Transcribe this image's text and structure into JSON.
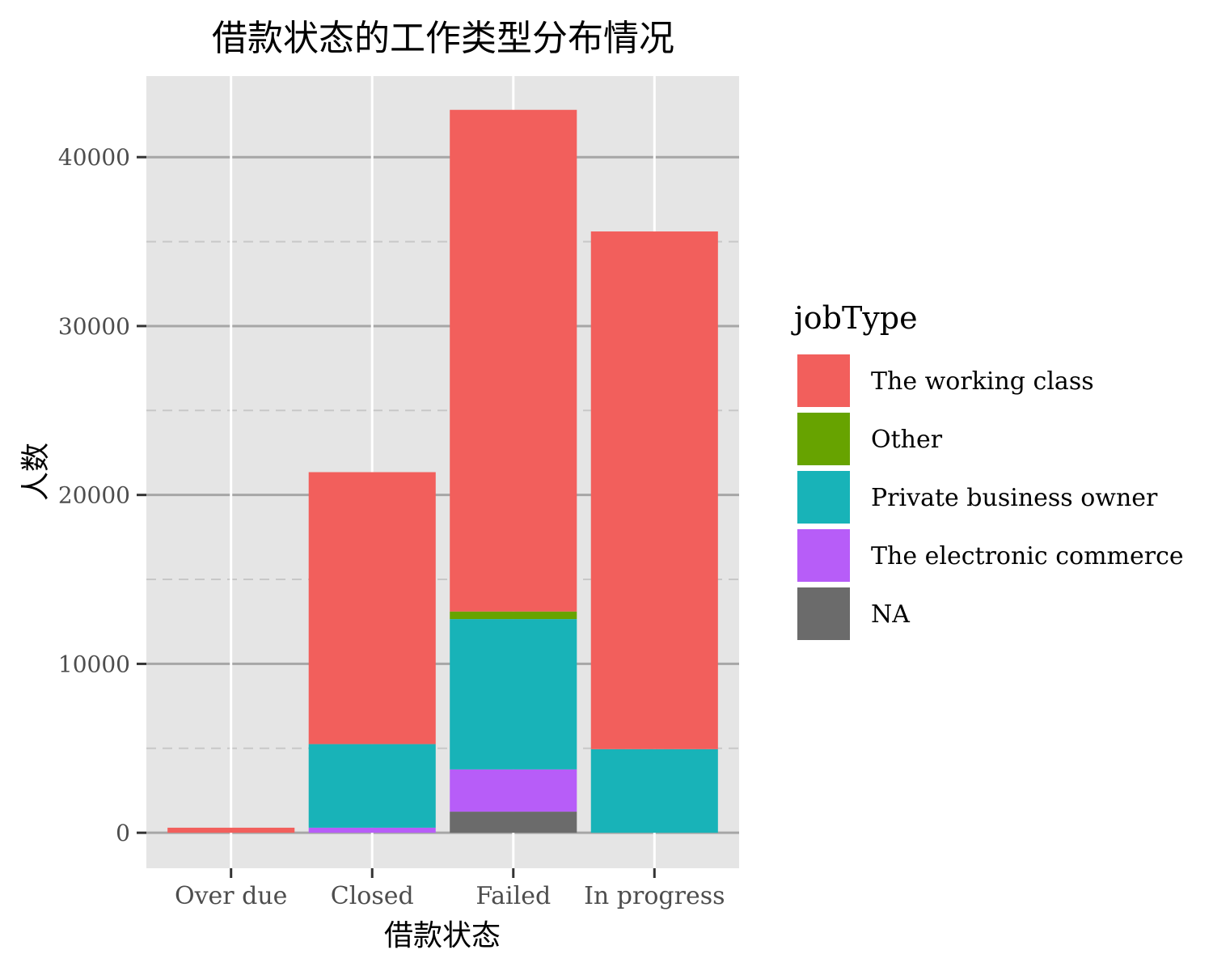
{
  "chart_data": {
    "type": "bar",
    "stacked": true,
    "title": "借款状态的工作类型分布情况",
    "xlabel": "借款状态",
    "ylabel": "人数",
    "categories": [
      "Over due",
      "Closed",
      "Failed",
      "In progress"
    ],
    "ylim": [
      -2100,
      44800
    ],
    "yticks": [
      0,
      10000,
      20000,
      30000,
      40000
    ],
    "yticks_minor": [
      5000,
      15000,
      25000,
      35000
    ],
    "grid": true,
    "legend_title": "jobType",
    "legend_position": "right",
    "series": [
      {
        "name": "NA",
        "color": "#6b6b6b",
        "values": [
          0,
          0,
          1250,
          0
        ]
      },
      {
        "name": "The electronic commerce",
        "color": "#b75df8",
        "values": [
          0,
          300,
          2500,
          0
        ]
      },
      {
        "name": "Private business owner",
        "color": "#18b3b8",
        "values": [
          0,
          4950,
          8900,
          4950
        ]
      },
      {
        "name": "Other",
        "color": "#67a300",
        "values": [
          0,
          0,
          450,
          0
        ]
      },
      {
        "name": "The working class",
        "color": "#f25f5c",
        "values": [
          300,
          16100,
          29700,
          30650
        ]
      }
    ],
    "legend_order": [
      "The working class",
      "Other",
      "Private business owner",
      "The electronic commerce",
      "NA"
    ]
  }
}
